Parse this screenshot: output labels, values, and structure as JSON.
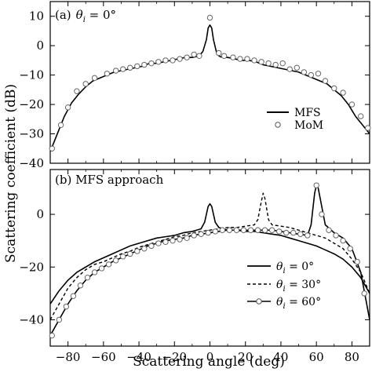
{
  "chart_data": [
    {
      "type": "line",
      "panel_label": "(a)",
      "title_parts": [
        "θ",
        "i",
        " = 0°"
      ],
      "xlabel": "Scattering angle (deg)",
      "ylabel": "Scattering coefficient (dB)",
      "xlim": [
        -90,
        90
      ],
      "ylim": [
        -40,
        15
      ],
      "yticks": [
        "10",
        "0",
        "−10",
        "−20",
        "−30",
        "−40"
      ],
      "ytick_values": [
        10,
        0,
        -10,
        -20,
        -30,
        -40
      ],
      "legend_position": "lower-right",
      "series": [
        {
          "name": "MFS",
          "style": "solid",
          "x": [
            -90,
            -86,
            -82,
            -78,
            -74,
            -70,
            -66,
            -62,
            -58,
            -54,
            -50,
            -46,
            -42,
            -38,
            -34,
            -30,
            -26,
            -22,
            -18,
            -14,
            -10,
            -6,
            -4,
            -2,
            -1,
            0,
            1,
            2,
            4,
            6,
            10,
            14,
            18,
            22,
            26,
            30,
            34,
            38,
            42,
            46,
            50,
            54,
            58,
            62,
            66,
            70,
            74,
            78,
            82,
            86,
            90
          ],
          "y": [
            -36,
            -30,
            -24,
            -19.5,
            -16.5,
            -14,
            -12,
            -11,
            -10,
            -9,
            -8.5,
            -8,
            -7.5,
            -7,
            -6,
            -6,
            -5.5,
            -5,
            -4.5,
            -4,
            -4,
            -3.5,
            -2,
            2,
            6,
            7,
            6,
            2,
            -3,
            -3.8,
            -4,
            -4.5,
            -5,
            -5,
            -5.5,
            -6.5,
            -7,
            -7.5,
            -8,
            -8.5,
            -9,
            -10,
            -11,
            -12,
            -13,
            -15,
            -17,
            -20,
            -24,
            -27,
            -30
          ]
        },
        {
          "name": "MoM",
          "style": "markers",
          "x": [
            -89,
            -84,
            -80,
            -75,
            -70,
            -65,
            -58,
            -53,
            -49,
            -45,
            -41,
            -37,
            -33,
            -29,
            -25,
            -21,
            -17,
            -13,
            -9,
            -6,
            0,
            5,
            8,
            13,
            17,
            21,
            25,
            29,
            33,
            37,
            41,
            45,
            49,
            53,
            57,
            61,
            65,
            70,
            75,
            80,
            85,
            89
          ],
          "y": [
            -35,
            -27,
            -21,
            -15.5,
            -13,
            -11,
            -9.5,
            -8.5,
            -8,
            -7.5,
            -7,
            -6.5,
            -6,
            -5.5,
            -5,
            -5,
            -4.5,
            -4,
            -3,
            -3.5,
            9.5,
            -2.5,
            -3.5,
            -4,
            -4.5,
            -4.5,
            -5,
            -5.5,
            -6,
            -6.5,
            -6,
            -8,
            -7.5,
            -9,
            -10,
            -9.5,
            -12,
            -14.5,
            -16,
            -20,
            -24,
            -28
          ]
        }
      ]
    },
    {
      "type": "line",
      "panel_label": "(b) MFS approach",
      "xlabel": "Scattering angle (deg)",
      "ylabel": "Scattering coefficient (dB)",
      "xlim": [
        -90,
        90
      ],
      "ylim": [
        -50,
        17
      ],
      "xticks": [
        "−80",
        "−60",
        "−40",
        "−20",
        "0",
        "20",
        "40",
        "60",
        "80"
      ],
      "xtick_values": [
        -80,
        -60,
        -40,
        -20,
        0,
        20,
        40,
        60,
        80
      ],
      "yticks": [
        "0",
        "−20",
        "−40"
      ],
      "ytick_values": [
        0,
        -20,
        -40
      ],
      "legend_position": "lower-right",
      "series": [
        {
          "name_parts": [
            "θ",
            "i",
            " = 0°"
          ],
          "style": "solid",
          "x": [
            -90,
            -85,
            -80,
            -75,
            -70,
            -65,
            -60,
            -55,
            -50,
            -45,
            -40,
            -35,
            -30,
            -25,
            -20,
            -15,
            -10,
            -5,
            -3,
            -1,
            0,
            1,
            3,
            5,
            10,
            15,
            20,
            25,
            30,
            35,
            40,
            45,
            50,
            55,
            60,
            65,
            70,
            75,
            80,
            85,
            90
          ],
          "y": [
            -34,
            -29,
            -25,
            -22,
            -20,
            -18,
            -16.5,
            -15,
            -13.5,
            -12,
            -11,
            -10,
            -9,
            -8.5,
            -8,
            -7,
            -6.5,
            -5.5,
            -3,
            3,
            4,
            3,
            -3,
            -5,
            -6,
            -6,
            -6.5,
            -6.5,
            -7,
            -7.5,
            -8,
            -9,
            -10,
            -11,
            -12,
            -13.5,
            -15,
            -17,
            -20,
            -24,
            -30
          ]
        },
        {
          "name_parts": [
            "θ",
            "i",
            " = 30°"
          ],
          "style": "dashed",
          "x": [
            -90,
            -85,
            -80,
            -75,
            -70,
            -65,
            -60,
            -55,
            -50,
            -45,
            -40,
            -35,
            -30,
            -25,
            -20,
            -15,
            -10,
            -5,
            0,
            5,
            10,
            15,
            20,
            25,
            27,
            29,
            30,
            31,
            33,
            35,
            40,
            45,
            50,
            55,
            60,
            65,
            70,
            75,
            80,
            85,
            90
          ],
          "y": [
            -40,
            -34,
            -28,
            -24,
            -21,
            -19,
            -18,
            -16.5,
            -15,
            -14,
            -12.5,
            -11.5,
            -10.5,
            -9.5,
            -8.5,
            -8,
            -7,
            -6.5,
            -6,
            -5.5,
            -5,
            -5,
            -4.5,
            -4,
            -2,
            5,
            8,
            6,
            -2,
            -4,
            -4.5,
            -5,
            -6,
            -7,
            -8,
            -9,
            -11,
            -13,
            -17,
            -22,
            -30
          ]
        },
        {
          "name_parts": [
            "θ",
            "i",
            " = 60°"
          ],
          "style": "solid-markers",
          "x": [
            -90,
            -85,
            -80,
            -75,
            -70,
            -65,
            -60,
            -55,
            -50,
            -45,
            -40,
            -35,
            -30,
            -25,
            -20,
            -15,
            -10,
            -5,
            0,
            5,
            10,
            15,
            20,
            25,
            30,
            35,
            40,
            45,
            50,
            55,
            57,
            59,
            60,
            61,
            63,
            65,
            70,
            75,
            80,
            85,
            90
          ],
          "y": [
            -46,
            -40,
            -34,
            -29,
            -25,
            -22,
            -20,
            -18,
            -16.5,
            -15,
            -13.5,
            -12,
            -11,
            -10,
            -9.5,
            -9,
            -8,
            -7.5,
            -7,
            -6.5,
            -6,
            -6,
            -6,
            -6,
            -6,
            -6,
            -6.5,
            -7,
            -7.5,
            -8,
            -4,
            8,
            11,
            10,
            3,
            -4,
            -7,
            -9,
            -13,
            -22,
            -40
          ]
        }
      ],
      "markers_60": {
        "x": [
          -89,
          -85,
          -81,
          -77,
          -73,
          -69,
          -65,
          -61,
          -57,
          -53,
          -49,
          -45,
          -41,
          -37,
          -33,
          -29,
          -25,
          -21,
          -17,
          -13,
          -9,
          -5,
          -1,
          3,
          7,
          11,
          15,
          19,
          23,
          27,
          31,
          35,
          39,
          43,
          47,
          51,
          55,
          60,
          63,
          67,
          71,
          75,
          79,
          83,
          87
        ],
        "y": [
          -46,
          -40,
          -35,
          -31,
          -27,
          -24,
          -22,
          -20.5,
          -19,
          -17.5,
          -16,
          -15,
          -14,
          -13,
          -12,
          -11,
          -10.5,
          -10,
          -9.5,
          -9,
          -8,
          -7.5,
          -7,
          -6.5,
          -6,
          -6,
          -6,
          -6,
          -6,
          -6,
          -6,
          -6,
          -6.5,
          -7,
          -7,
          -7.5,
          -8,
          11,
          0,
          -6,
          -8,
          -10,
          -13,
          -18,
          -30
        ]
      }
    }
  ]
}
